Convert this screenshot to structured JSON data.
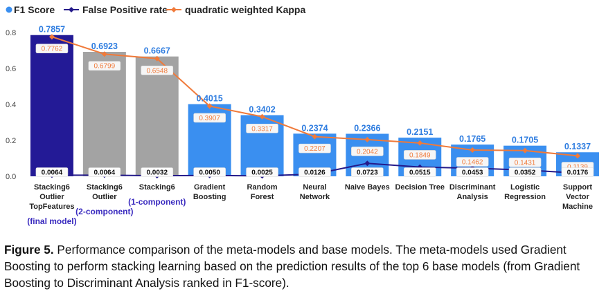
{
  "chart_data": {
    "type": "bar",
    "title": "",
    "xlabel": "",
    "ylabel": "",
    "ylim": [
      0,
      0.8
    ],
    "yticks": [
      "0.0",
      "0.2",
      "0.4",
      "0.6",
      "0.8"
    ],
    "legend_position": "top-left",
    "grid": false,
    "categories": [
      "Stacking6 Outlier TopFeatures",
      "Stacking6 Outlier",
      "Stacking6",
      "Gradient Boosting",
      "Random Forest",
      "Neural Network",
      "Naive Bayes",
      "Decision Tree",
      "Discriminant Analysis",
      "Logistic Regression",
      "Support Vector Machine"
    ],
    "category_lines": [
      [
        "Stacking6",
        "Outlier",
        "TopFeatures"
      ],
      [
        "Stacking6",
        "Outlier"
      ],
      [
        "Stacking6"
      ],
      [
        "Gradient",
        "Boosting"
      ],
      [
        "Random",
        "Forest"
      ],
      [
        "Neural",
        "Network"
      ],
      [
        "Naive Bayes"
      ],
      [
        "Decision Tree"
      ],
      [
        "Discriminant",
        "Analysis"
      ],
      [
        "Logistic",
        "Regression"
      ],
      [
        "Support",
        "Vector",
        "Machine"
      ]
    ],
    "category_notes": [
      "(final model)",
      "(2-component)",
      "(1-component)",
      "",
      "",
      "",
      "",
      "",
      "",
      "",
      ""
    ],
    "series": [
      {
        "name": "F1 Score",
        "kind": "bar",
        "values": [
          0.7857,
          0.6923,
          0.6667,
          0.4015,
          0.3402,
          0.2374,
          0.2366,
          0.2151,
          0.1765,
          0.1705,
          0.1337
        ],
        "labels": [
          "0.7857",
          "0.6923",
          "0.6667",
          "0.4015",
          "0.3402",
          "0.2374",
          "0.2366",
          "0.2151",
          "0.1765",
          "0.1705",
          "0.1337"
        ]
      },
      {
        "name": "False Positive rate",
        "kind": "line",
        "values": [
          0.0064,
          0.0064,
          0.0032,
          0.005,
          0.0025,
          0.0126,
          0.0723,
          0.0515,
          0.0453,
          0.0352,
          0.0176
        ],
        "labels": [
          "0.0064",
          "0.0064",
          "0.0032",
          "0.0050",
          "0.0025",
          "0.0126",
          "0.0723",
          "0.0515",
          "0.0453",
          "0.0352",
          "0.0176"
        ]
      },
      {
        "name": "quadratic weighted Kappa",
        "kind": "line",
        "values": [
          0.7762,
          0.6799,
          0.6548,
          0.3907,
          0.3317,
          0.2207,
          0.2042,
          0.1849,
          0.1462,
          0.1431,
          0.1139
        ],
        "labels": [
          "0.7762",
          "0.6799",
          "0.6548",
          "0.3907",
          "0.3317",
          "0.2207",
          "0.2042",
          "0.1849",
          "0.1462",
          "0.1431",
          "0.1139"
        ]
      }
    ],
    "bar_colors": [
      "#231a96",
      "#a3a3a3",
      "#a3a3a3",
      "#3a8ff0",
      "#3a8ff0",
      "#3a8ff0",
      "#3a8ff0",
      "#3a8ff0",
      "#3a8ff0",
      "#3a8ff0",
      "#3a8ff0"
    ],
    "colors": {
      "f1": "#3a8ff0",
      "f1_label": "#2f7de0",
      "fpr": "#241a8a",
      "kappa": "#f07a3a",
      "note": "#3a2bbf",
      "axis_text": "#444444"
    }
  },
  "caption": {
    "prefix": "Figure 5.",
    "text": " Performance comparison of the meta-models and base models. The meta-models used Gradient Boosting to perform stacking learning based on the prediction results of the top 6 base models (from Gradient Boosting to Discriminant Analysis ranked in F1-score)."
  }
}
